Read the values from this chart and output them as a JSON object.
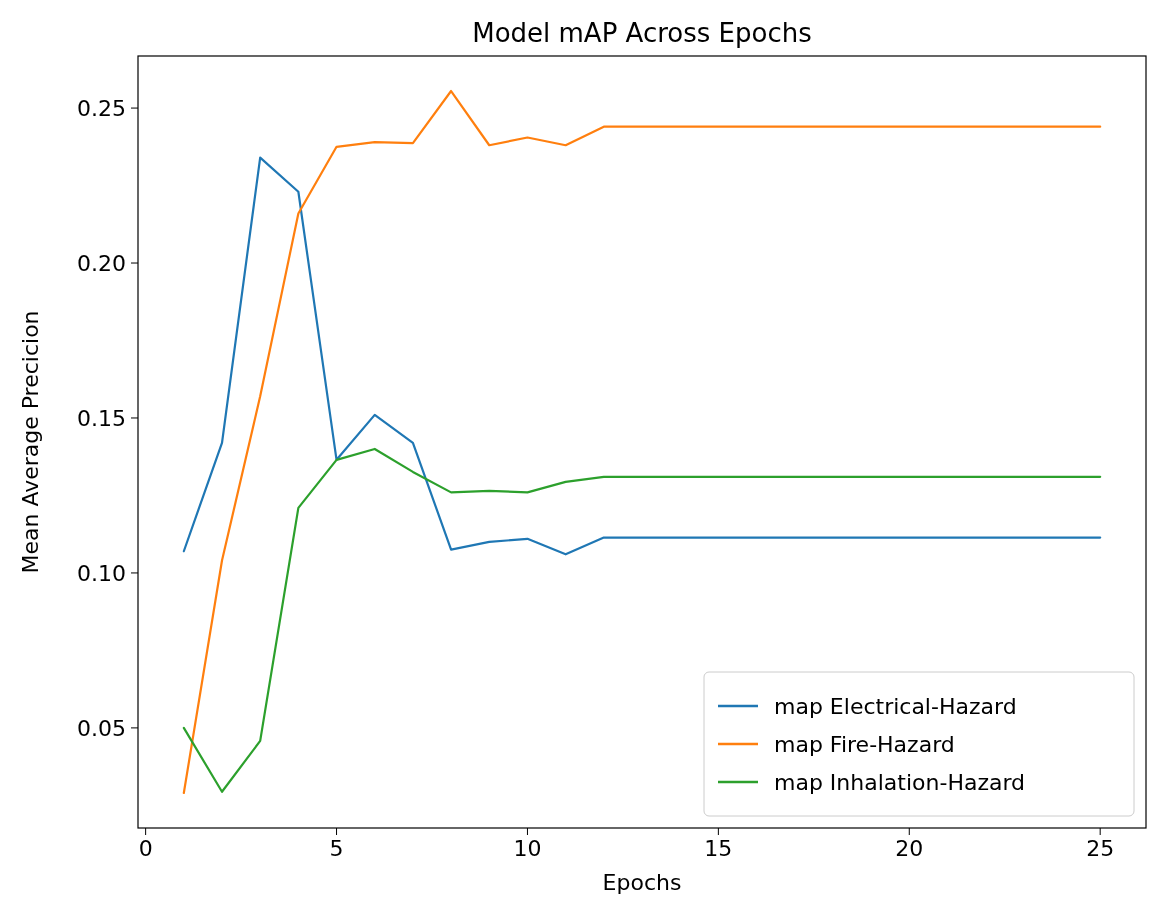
{
  "chart_data": {
    "type": "line",
    "title": "Model mAP Across Epochs",
    "xlabel": "Epochs",
    "ylabel": "Mean Average Precicion",
    "x": [
      1,
      2,
      3,
      4,
      5,
      6,
      7,
      8,
      9,
      10,
      11,
      12,
      13,
      14,
      15,
      16,
      17,
      18,
      19,
      20,
      21,
      22,
      23,
      24,
      25
    ],
    "series": [
      {
        "name": "map Electrical-Hazard",
        "color": "#1f77b4",
        "values": [
          0.107,
          0.142,
          0.234,
          0.223,
          0.1365,
          0.151,
          0.142,
          0.1075,
          0.11,
          0.111,
          0.106,
          0.1114,
          0.1114,
          0.1114,
          0.1114,
          0.1114,
          0.1114,
          0.1114,
          0.1114,
          0.1114,
          0.1114,
          0.1114,
          0.1114,
          0.1114,
          0.1114
        ]
      },
      {
        "name": "map Fire-Hazard",
        "color": "#ff7f0e",
        "values": [
          0.029,
          0.104,
          0.157,
          0.216,
          0.2375,
          0.239,
          0.2387,
          0.2555,
          0.238,
          0.2405,
          0.238,
          0.244,
          0.244,
          0.244,
          0.244,
          0.244,
          0.244,
          0.244,
          0.244,
          0.244,
          0.244,
          0.244,
          0.244,
          0.244,
          0.244
        ]
      },
      {
        "name": "map Inhalation-Hazard",
        "color": "#2ca02c",
        "values": [
          0.05,
          0.0294,
          0.0458,
          0.121,
          0.1365,
          0.14,
          0.1326,
          0.126,
          0.1265,
          0.126,
          0.1294,
          0.131,
          0.131,
          0.131,
          0.131,
          0.131,
          0.131,
          0.131,
          0.131,
          0.131,
          0.131,
          0.131,
          0.131,
          0.131,
          0.131
        ]
      }
    ],
    "xlim": [
      -0.2,
      26.2
    ],
    "xticks": [
      0,
      5,
      10,
      15,
      20,
      25
    ],
    "ylim": [
      0.0177,
      0.2668
    ],
    "yticks": [
      {
        "value": 0.05,
        "label": "0.05"
      },
      {
        "value": 0.1,
        "label": "0.10"
      },
      {
        "value": 0.15,
        "label": "0.15"
      },
      {
        "value": 0.2,
        "label": "0.20"
      },
      {
        "value": 0.25,
        "label": "0.25"
      }
    ],
    "legend": "bottom right",
    "grid": false,
    "line_style": "solid",
    "marker": "none"
  }
}
